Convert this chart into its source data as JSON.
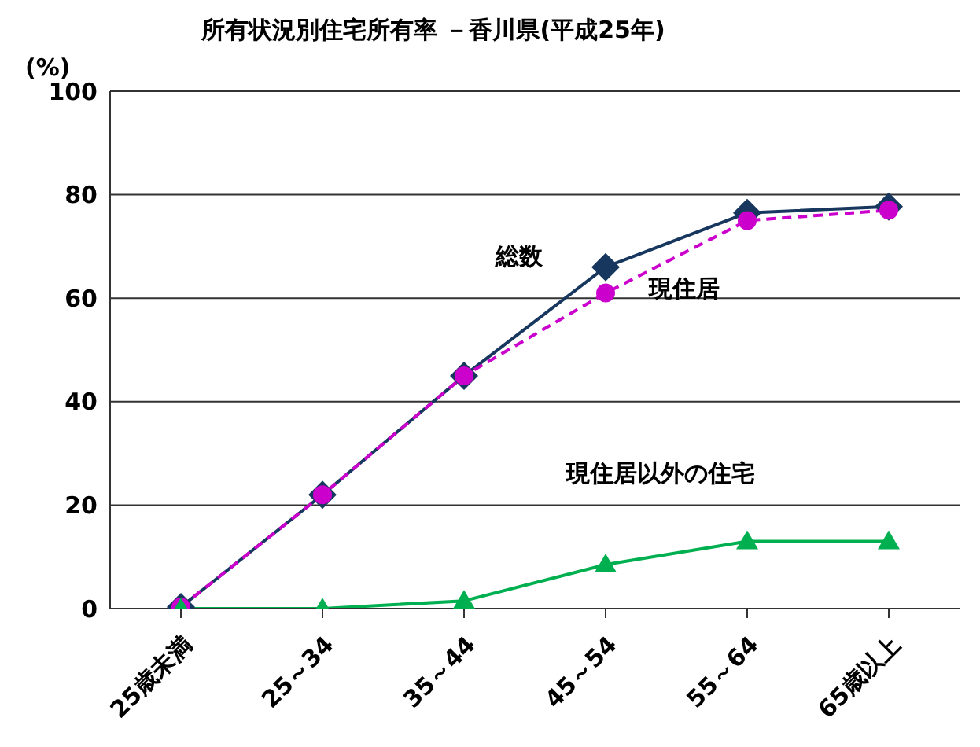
{
  "chart_data": {
    "type": "line",
    "title": "所有状況別住宅所有率 －香川県(平成25年)",
    "ylabel": "(%)",
    "categories": [
      "25歳未満",
      "25～34",
      "35～44",
      "45～54",
      "55～64",
      "65歳以上"
    ],
    "series": [
      {
        "name": "総数",
        "color": "#17375e",
        "values": [
          0.3,
          22,
          45,
          66,
          76.5,
          77.7
        ],
        "marker": "diamond",
        "line_style": "solid"
      },
      {
        "name": "現住居",
        "color": "#cc00cc",
        "values": [
          0.3,
          22,
          45,
          61,
          75,
          77
        ],
        "marker": "circle",
        "line_style": "dashed"
      },
      {
        "name": "現住居以外の住宅",
        "color": "#00b050",
        "values": [
          0,
          0,
          1.5,
          8.5,
          13,
          13
        ],
        "marker": "triangle",
        "line_style": "solid"
      }
    ],
    "ylim": [
      0,
      100
    ],
    "yticks": [
      0,
      20,
      40,
      60,
      80,
      100
    ],
    "grid": "y"
  }
}
